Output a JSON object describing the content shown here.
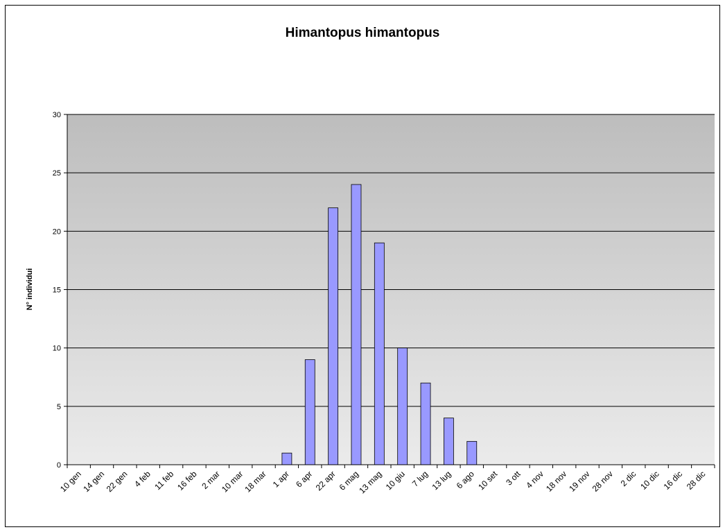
{
  "chart_data": {
    "type": "bar",
    "title": "Himantopus himantopus",
    "y_label": "N° individui",
    "categories": [
      "10 gen",
      "14 gen",
      "22 gen",
      "4 feb",
      "11 feb",
      "16 feb",
      "2 mar",
      "10 mar",
      "18 mar",
      "1 apr",
      "6 apr",
      "22 apr",
      "6 mag",
      "13 mag",
      "10 giu",
      "7 lug",
      "13 lug",
      "6 ago",
      "10 set",
      "3 ott",
      "4 nov",
      "18 nov",
      "19 nov",
      "28 nov",
      "2 dic",
      "10 dic",
      "16 dic",
      "28 dic"
    ],
    "values": [
      0,
      0,
      0,
      0,
      0,
      0,
      0,
      0,
      0,
      1,
      9,
      22,
      24,
      19,
      10,
      7,
      4,
      2,
      0,
      0,
      0,
      0,
      0,
      0,
      0,
      0,
      0,
      0
    ],
    "color": "#9999ff",
    "ylim": [
      0,
      30
    ],
    "yticks": [
      0,
      5,
      10,
      15,
      20,
      25,
      30
    ],
    "grid": true
  }
}
